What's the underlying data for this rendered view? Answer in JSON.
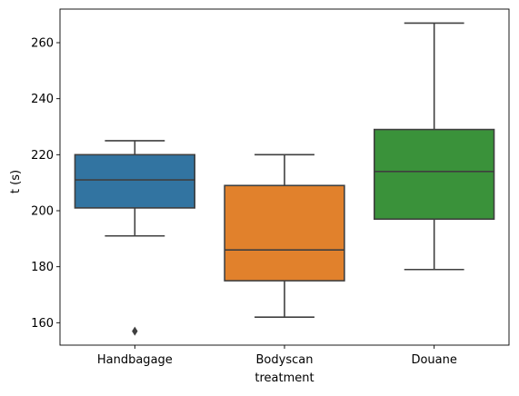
{
  "chart_data": {
    "type": "box",
    "xlabel": "treatment",
    "ylabel": "t (s)",
    "ylim": [
      152,
      272
    ],
    "yticks": [
      160,
      180,
      200,
      220,
      240,
      260
    ],
    "grid": false,
    "categories": [
      "Handbagage",
      "Bodyscan",
      "Douane"
    ],
    "boxes": [
      {
        "category": "Handbagage",
        "color": "#3274a1",
        "whisker_low": 191,
        "q1": 201,
        "median": 211,
        "q3": 220,
        "whisker_high": 225,
        "outliers": [
          157
        ]
      },
      {
        "category": "Bodyscan",
        "color": "#e1812c",
        "whisker_low": 162,
        "q1": 175,
        "median": 186,
        "q3": 209,
        "whisker_high": 220,
        "outliers": []
      },
      {
        "category": "Douane",
        "color": "#3a923a",
        "whisker_low": 179,
        "q1": 197,
        "median": 214,
        "q3": 229,
        "whisker_high": 267,
        "outliers": []
      }
    ]
  }
}
